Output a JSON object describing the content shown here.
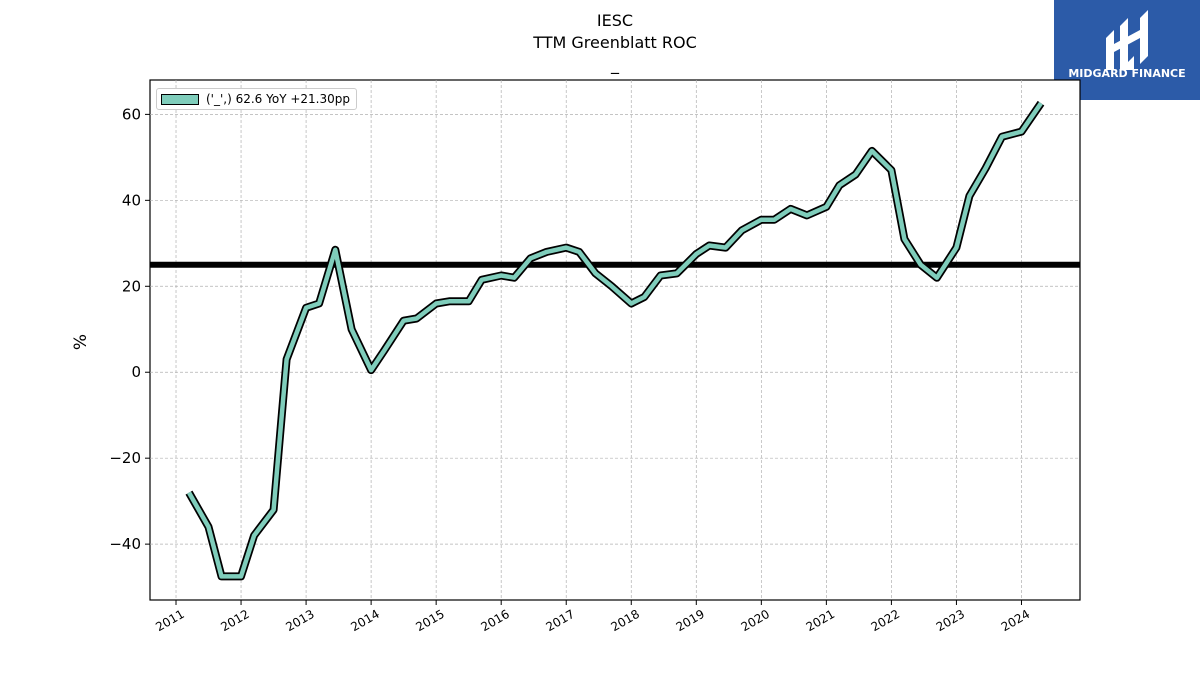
{
  "title_lines": [
    "IESC",
    "TTM Greenblatt ROC",
    "_"
  ],
  "brand": {
    "name": "MIDGARD FINANCE",
    "color": "#2c5ba8"
  },
  "colors": {
    "series": "#7fcdbb",
    "outline": "#000000",
    "reference": "#000000",
    "grid": "#b0b0b0"
  },
  "chart_data": {
    "type": "line",
    "ylabel": "%",
    "xlabel": "",
    "xlim": [
      2010.6,
      2024.9
    ],
    "ylim": [
      -53,
      68
    ],
    "yticks": [
      -40,
      -20,
      0,
      20,
      40,
      60
    ],
    "ytick_labels": [
      "−40",
      "−20",
      "0",
      "20",
      "40",
      "60"
    ],
    "xticks": [
      2011,
      2012,
      2013,
      2014,
      2015,
      2016,
      2017,
      2018,
      2019,
      2020,
      2021,
      2022,
      2023,
      2024
    ],
    "xtick_labels": [
      "2011",
      "2012",
      "2013",
      "2014",
      "2015",
      "2016",
      "2017",
      "2018",
      "2019",
      "2020",
      "2021",
      "2022",
      "2023",
      "2024"
    ],
    "grid": true,
    "legend_position": "top-left",
    "reference_line": 25,
    "series": [
      {
        "name": "('_',) 62.6 YoY +21.30pp",
        "x": [
          2011.2,
          2011.5,
          2011.7,
          2012.0,
          2012.2,
          2012.5,
          2012.7,
          2013.0,
          2013.2,
          2013.45,
          2013.7,
          2014.0,
          2014.2,
          2014.5,
          2014.7,
          2015.0,
          2015.2,
          2015.5,
          2015.7,
          2016.0,
          2016.2,
          2016.45,
          2016.7,
          2017.0,
          2017.2,
          2017.45,
          2017.7,
          2018.0,
          2018.2,
          2018.45,
          2018.7,
          2019.0,
          2019.2,
          2019.45,
          2019.7,
          2020.0,
          2020.2,
          2020.45,
          2020.7,
          2021.0,
          2021.2,
          2021.45,
          2021.7,
          2022.0,
          2022.2,
          2022.45,
          2022.7,
          2023.0,
          2023.2,
          2023.45,
          2023.7,
          2024.0,
          2024.3
        ],
        "values": [
          -28,
          -36,
          -47.5,
          -47.5,
          -38,
          -32,
          3,
          15,
          16,
          28.5,
          10,
          0.5,
          5,
          12,
          12.5,
          16,
          16.5,
          16.5,
          21.5,
          22.5,
          22,
          26.5,
          28,
          29,
          28,
          23,
          20,
          16,
          17.5,
          22.5,
          23,
          27.5,
          29.5,
          29,
          33,
          35.5,
          35.5,
          38,
          36.5,
          38.5,
          43.5,
          46,
          51.5,
          47,
          31,
          25,
          22,
          29,
          41,
          47.5,
          54.8,
          56,
          62.6
        ]
      }
    ]
  }
}
